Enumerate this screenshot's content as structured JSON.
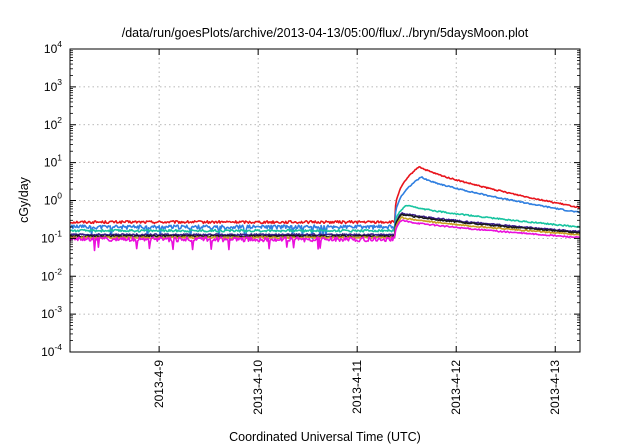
{
  "chart_data": {
    "type": "line",
    "title": "/data/run/goesPlots/archive/2013-04-13/05:00/flux/../bryn/5daysMoon.plot",
    "xlabel": "Coordinated Universal Time (UTC)",
    "ylabel": "cGy/day",
    "yscale": "log",
    "ylim": [
      0.0001,
      10000
    ],
    "xlim": [
      8.1,
      13.25
    ],
    "xtick_values": [
      9,
      10,
      11,
      12,
      13
    ],
    "xtick_labels": [
      "2013-4-9",
      "2013-4-10",
      "2013-4-11",
      "2013-4-12",
      "2013-4-13"
    ],
    "ytick_base": "10",
    "ytick_exponents": [
      "-4",
      "-3",
      "-2",
      "-1",
      "0",
      "1",
      "2",
      "3",
      "4"
    ],
    "grid": true,
    "legend": "none",
    "event_onset": 11.38,
    "series": [
      {
        "color": "#e8141c",
        "quiet": 0.27,
        "peak_time": 11.63,
        "peak": 8.0,
        "end": 0.65,
        "noise": 0.08,
        "dips": false
      },
      {
        "color": "#2f7fe0",
        "quiet": 0.2,
        "peak_time": 11.65,
        "peak": 4.2,
        "end": 0.48,
        "noise": 0.12,
        "dips": true
      },
      {
        "color": "#18c4a0",
        "quiet": 0.16,
        "peak_time": 11.5,
        "peak": 0.75,
        "end": 0.2,
        "noise": 0.07,
        "dips": false
      },
      {
        "color": "#3a1c8c",
        "quiet": 0.125,
        "peak_time": 11.45,
        "peak": 0.47,
        "end": 0.15,
        "noise": 0.05,
        "dips": false
      },
      {
        "color": "#1a1a1a",
        "quiet": 0.115,
        "peak_time": 11.45,
        "peak": 0.44,
        "end": 0.14,
        "noise": 0.05,
        "dips": false
      },
      {
        "color": "#c8a020",
        "quiet": 0.105,
        "peak_time": 11.45,
        "peak": 0.36,
        "end": 0.125,
        "noise": 0.05,
        "dips": false
      },
      {
        "color": "#ea10dc",
        "quiet": 0.095,
        "peak_time": 11.45,
        "peak": 0.3,
        "end": 0.105,
        "noise": 0.14,
        "dips": true
      }
    ]
  }
}
